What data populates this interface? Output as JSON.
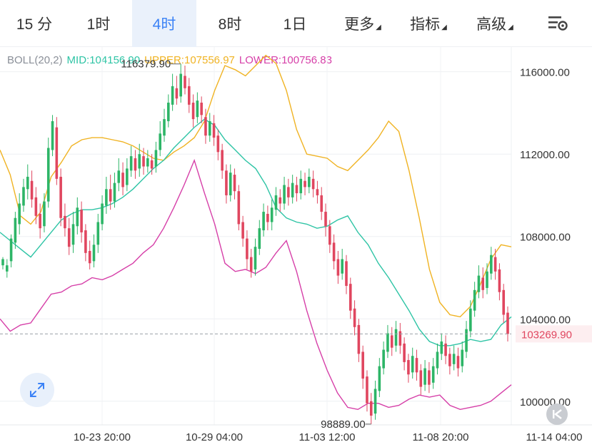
{
  "tabs": [
    {
      "label": "15 分",
      "active": false
    },
    {
      "label": "1时",
      "active": false
    },
    {
      "label": "4时",
      "active": true
    },
    {
      "label": "8时",
      "active": false
    },
    {
      "label": "1日",
      "active": false
    },
    {
      "label": "更多",
      "active": false,
      "dropdown": true
    },
    {
      "label": "指标",
      "active": false,
      "dropdown": true
    },
    {
      "label": "高级",
      "active": false,
      "dropdown": true
    }
  ],
  "settings_icon": "chart-settings-icon",
  "legend": {
    "name": "BOLL(20,2)",
    "mid": "MID:104156.90",
    "upper": "UPPER:107556.97",
    "lower": "LOWER:100756.83"
  },
  "colors": {
    "mid": "#2ec4a5",
    "upper": "#f0b323",
    "lower": "#d63fa8",
    "up": "#2db567",
    "down": "#e0465f",
    "active_tab": "#3b82f6",
    "current_price": "#e0465f"
  },
  "chart_data": {
    "type": "candlestick",
    "y_ticks": [
      "116000.00",
      "112000.00",
      "108000.00",
      "104000.00",
      "100000.00"
    ],
    "y_tick_values": [
      116000,
      112000,
      108000,
      104000,
      100000
    ],
    "ylim": [
      98850,
      117200
    ],
    "x_ticks": [
      "10-23 20:00",
      "10-29 04:00",
      "11-03 12:00",
      "11-08 20:00",
      "11-14 04:00"
    ],
    "current_price": "103269.90",
    "current_price_value": 103269.9,
    "high_label": "116379.90",
    "high_value": 116379.9,
    "low_label": "98889.00",
    "low_value": 98889.0,
    "boll_upper": [
      112200,
      111000,
      109000,
      108600,
      109200,
      110900,
      111600,
      112400,
      112700,
      112800,
      112800,
      112700,
      112600,
      112400,
      112100,
      111800,
      111700,
      112100,
      112400,
      112800,
      113600,
      115100,
      116300,
      116100,
      115800,
      116300,
      116800,
      116400,
      115100,
      113200,
      112000,
      111900,
      111800,
      111400,
      111200,
      111700,
      112200,
      112800,
      113600,
      113100,
      111200,
      108900,
      106400,
      104800,
      104200,
      104100,
      104600,
      105700,
      106900,
      107600,
      107500
    ],
    "boll_mid": [
      108200,
      107800,
      107400,
      107000,
      107600,
      108200,
      108800,
      109100,
      109300,
      109300,
      109400,
      109600,
      109900,
      110300,
      110800,
      111300,
      111700,
      112300,
      112800,
      113300,
      113700,
      113400,
      112700,
      112200,
      111700,
      111300,
      110500,
      109400,
      108900,
      108700,
      108600,
      108400,
      108500,
      108800,
      109000,
      108200,
      107600,
      106700,
      106000,
      105200,
      104400,
      103500,
      102900,
      102700,
      102700,
      102800,
      103000,
      102900,
      103000,
      103700,
      104100
    ],
    "boll_lower": [
      104000,
      103400,
      103700,
      103800,
      104500,
      105200,
      105300,
      105600,
      105700,
      106000,
      105900,
      106100,
      106400,
      106700,
      107200,
      107600,
      108400,
      109400,
      110500,
      111700,
      110100,
      108600,
      106700,
      106300,
      106400,
      106200,
      106500,
      107200,
      107800,
      106300,
      104400,
      102800,
      101500,
      100400,
      99700,
      99600,
      99900,
      99900,
      99700,
      99800,
      100100,
      100300,
      100200,
      100300,
      99800,
      99600,
      99700,
      99800,
      100000,
      100400,
      100800
    ],
    "candles": [
      [
        106600,
        106900,
        106400,
        107000
      ],
      [
        106300,
        106600,
        106000,
        106900
      ],
      [
        106800,
        107900,
        106500,
        108100
      ],
      [
        107700,
        108900,
        107400,
        109200
      ],
      [
        108600,
        109600,
        108100,
        110100
      ],
      [
        109500,
        110400,
        109200,
        110800
      ],
      [
        110300,
        110900,
        109800,
        111500
      ],
      [
        110700,
        109800,
        109400,
        111200
      ],
      [
        109900,
        109000,
        108600,
        110400
      ],
      [
        109100,
        108400,
        107900,
        109600
      ],
      [
        108500,
        109700,
        108200,
        110100
      ],
      [
        109700,
        112300,
        109400,
        112800
      ],
      [
        112200,
        113600,
        111900,
        113900
      ],
      [
        113300,
        110800,
        110500,
        113800
      ],
      [
        110900,
        108900,
        108500,
        111300
      ],
      [
        109000,
        108400,
        108000,
        109600
      ],
      [
        108400,
        107500,
        107100,
        108900
      ],
      [
        107600,
        108600,
        107200,
        109200
      ],
      [
        108500,
        109400,
        108100,
        109900
      ],
      [
        109300,
        108200,
        107700,
        109700
      ],
      [
        108300,
        107200,
        106800,
        108600
      ],
      [
        107300,
        106700,
        106400,
        107800
      ],
      [
        106800,
        107600,
        106500,
        108100
      ],
      [
        107600,
        108700,
        107200,
        109100
      ],
      [
        108600,
        109600,
        108300,
        110000
      ],
      [
        109500,
        110300,
        109100,
        110900
      ],
      [
        110300,
        109700,
        109300,
        111000
      ],
      [
        109700,
        110600,
        109400,
        111100
      ],
      [
        110600,
        111200,
        110200,
        111800
      ],
      [
        111100,
        110400,
        110000,
        111600
      ],
      [
        110500,
        111300,
        110200,
        111800
      ],
      [
        111200,
        111900,
        110900,
        112400
      ],
      [
        111800,
        111200,
        110800,
        112200
      ],
      [
        111300,
        112000,
        110900,
        112500
      ],
      [
        111900,
        111400,
        111000,
        112300
      ],
      [
        111400,
        111800,
        111100,
        112200
      ],
      [
        111700,
        111300,
        111000,
        112000
      ],
      [
        111400,
        112200,
        111100,
        112600
      ],
      [
        112200,
        113000,
        111900,
        113600
      ],
      [
        112900,
        113700,
        112600,
        114200
      ],
      [
        113600,
        114500,
        113300,
        114900
      ],
      [
        114400,
        115300,
        114100,
        115900
      ],
      [
        115200,
        114700,
        114400,
        115800
      ],
      [
        114800,
        115900,
        114500,
        116379.9
      ],
      [
        115800,
        115200,
        114900,
        116300
      ],
      [
        115300,
        114400,
        114000,
        115700
      ],
      [
        114500,
        113700,
        113300,
        114900
      ],
      [
        113800,
        114600,
        113500,
        115000
      ],
      [
        114500,
        113900,
        113500,
        114800
      ],
      [
        113800,
        112900,
        112500,
        114200
      ],
      [
        112900,
        113600,
        112600,
        114000
      ],
      [
        113500,
        112800,
        112400,
        113900
      ],
      [
        112900,
        112100,
        111700,
        113200
      ],
      [
        112200,
        111200,
        110800,
        112500
      ],
      [
        111200,
        110000,
        109600,
        111500
      ],
      [
        110000,
        111100,
        109700,
        111500
      ],
      [
        111000,
        110200,
        109800,
        111300
      ],
      [
        110200,
        108600,
        108300,
        110500
      ],
      [
        108700,
        107900,
        107500,
        109000
      ],
      [
        107900,
        106900,
        106400,
        108300
      ],
      [
        107000,
        106300,
        106000,
        107400
      ],
      [
        106400,
        107500,
        106100,
        107900
      ],
      [
        107400,
        108400,
        107100,
        108800
      ],
      [
        108300,
        109200,
        108000,
        109600
      ],
      [
        109100,
        108700,
        108300,
        109500
      ],
      [
        108700,
        109400,
        108300,
        109800
      ],
      [
        109300,
        110000,
        109000,
        110400
      ],
      [
        109900,
        109600,
        109200,
        110300
      ],
      [
        109600,
        110500,
        109300,
        110900
      ],
      [
        110400,
        109900,
        109500,
        110800
      ],
      [
        109900,
        110600,
        109600,
        111000
      ],
      [
        110500,
        110100,
        109700,
        110900
      ],
      [
        110100,
        110800,
        109800,
        111200
      ],
      [
        110700,
        110400,
        110000,
        111100
      ],
      [
        110400,
        110900,
        110100,
        111300
      ],
      [
        110800,
        110300,
        109900,
        111200
      ],
      [
        110300,
        110000,
        109600,
        110700
      ],
      [
        110000,
        109200,
        108800,
        110400
      ],
      [
        109200,
        108500,
        108000,
        109600
      ],
      [
        108500,
        107600,
        107200,
        108800
      ],
      [
        107700,
        106800,
        106400,
        108100
      ],
      [
        106900,
        106100,
        105700,
        107300
      ],
      [
        106200,
        106900,
        105900,
        107400
      ],
      [
        106800,
        105600,
        105200,
        107100
      ],
      [
        105700,
        104400,
        104000,
        106000
      ],
      [
        104500,
        103600,
        103200,
        104900
      ],
      [
        103700,
        102300,
        101900,
        104000
      ],
      [
        102400,
        101100,
        100600,
        102700
      ],
      [
        101200,
        99900,
        99500,
        101500
      ],
      [
        100000,
        99300,
        98889,
        100400
      ],
      [
        99400,
        100600,
        99100,
        101000
      ],
      [
        100500,
        101700,
        100200,
        102100
      ],
      [
        101600,
        102500,
        101300,
        102900
      ],
      [
        102400,
        103300,
        102100,
        103700
      ],
      [
        103200,
        102600,
        102200,
        103600
      ],
      [
        102700,
        103500,
        102400,
        103900
      ],
      [
        103400,
        102700,
        102300,
        103800
      ],
      [
        102800,
        101900,
        101500,
        103100
      ],
      [
        102000,
        101300,
        100900,
        102300
      ],
      [
        101400,
        102200,
        101100,
        102600
      ],
      [
        102100,
        101400,
        101000,
        102500
      ],
      [
        101500,
        100700,
        100300,
        101800
      ],
      [
        100800,
        101600,
        100500,
        102000
      ],
      [
        101500,
        100800,
        100400,
        101900
      ],
      [
        100900,
        101700,
        100600,
        102100
      ],
      [
        101600,
        102400,
        101300,
        102800
      ],
      [
        102300,
        102900,
        102000,
        103300
      ],
      [
        102800,
        102200,
        101800,
        103200
      ],
      [
        102300,
        101700,
        101300,
        102600
      ],
      [
        101800,
        102300,
        101500,
        102700
      ],
      [
        102200,
        101600,
        101200,
        102600
      ],
      [
        101700,
        102500,
        101400,
        102900
      ],
      [
        102400,
        103500,
        102100,
        103900
      ],
      [
        103400,
        104500,
        103100,
        104900
      ],
      [
        104400,
        105400,
        104100,
        105800
      ],
      [
        105300,
        106100,
        105000,
        106600
      ],
      [
        106000,
        105400,
        105000,
        106500
      ],
      [
        105500,
        106300,
        105200,
        106700
      ],
      [
        106200,
        107100,
        105900,
        107500
      ],
      [
        107000,
        106300,
        105900,
        107400
      ],
      [
        106400,
        105300,
        104900,
        106700
      ],
      [
        105400,
        104200,
        103800,
        105700
      ],
      [
        104300,
        103269.9,
        102900,
        104600
      ]
    ]
  }
}
